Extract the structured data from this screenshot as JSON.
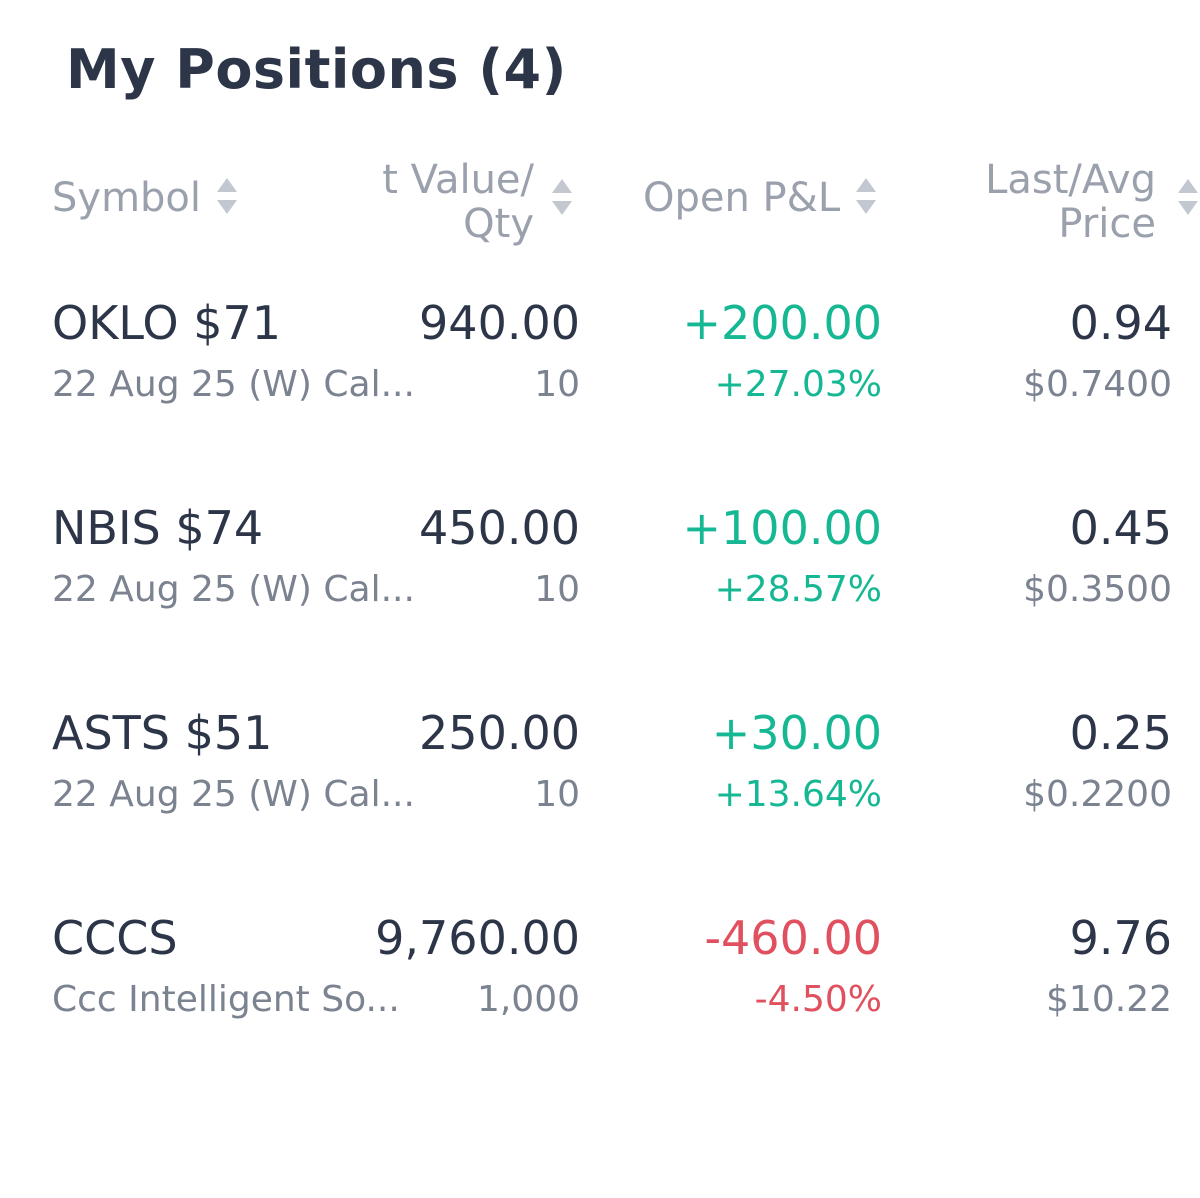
{
  "title": "My Positions (4)",
  "columns": {
    "symbol": "Symbol",
    "value": "t Value/\nQty",
    "pnl": "Open P&L",
    "price": "Last/Avg\nPrice"
  },
  "colors": {
    "positive": "#16b894",
    "negative": "#e0505e",
    "text": "#2d3548",
    "muted": "#7b8290"
  },
  "positions": [
    {
      "symbol": "OKLO $71",
      "description": "22 Aug 25 (W) Cal...",
      "value": "940.00",
      "qty": "10",
      "pnl": "+200.00",
      "pnl_pct": "+27.03%",
      "direction": "up",
      "last": "0.94",
      "avg": "$0.7400"
    },
    {
      "symbol": "NBIS $74",
      "description": "22 Aug 25 (W) Cal...",
      "value": "450.00",
      "qty": "10",
      "pnl": "+100.00",
      "pnl_pct": "+28.57%",
      "direction": "up",
      "last": "0.45",
      "avg": "$0.3500"
    },
    {
      "symbol": "ASTS $51",
      "description": "22 Aug 25 (W) Cal...",
      "value": "250.00",
      "qty": "10",
      "pnl": "+30.00",
      "pnl_pct": "+13.64%",
      "direction": "up",
      "last": "0.25",
      "avg": "$0.2200"
    },
    {
      "symbol": "CCCS",
      "description": "Ccc Intelligent So...",
      "value": "9,760.00",
      "qty": "1,000",
      "pnl": "-460.00",
      "pnl_pct": "-4.50%",
      "direction": "down",
      "last": "9.76",
      "avg": "$10.22"
    }
  ]
}
